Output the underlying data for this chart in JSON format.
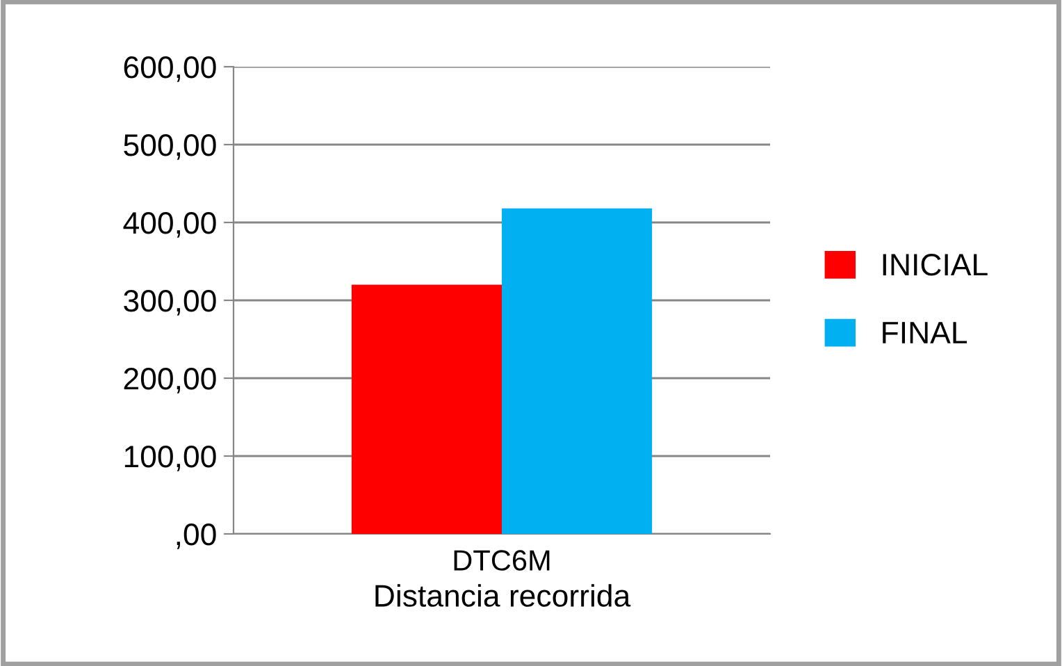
{
  "chart_data": {
    "type": "bar",
    "categories": [
      "DTC6M"
    ],
    "xlabel": "Distancia recorrida",
    "series": [
      {
        "name": "INICIAL",
        "color": "#ff0000",
        "values": [
          320
        ]
      },
      {
        "name": "FINAL",
        "color": "#00b0f0",
        "values": [
          418
        ]
      }
    ],
    "ylim": [
      0,
      600
    ],
    "yticks": [
      {
        "value": 0,
        "label": ",00"
      },
      {
        "value": 100,
        "label": "100,00"
      },
      {
        "value": 200,
        "label": "200,00"
      },
      {
        "value": 300,
        "label": "300,00"
      },
      {
        "value": 400,
        "label": "400,00"
      },
      {
        "value": 500,
        "label": "500,00"
      },
      {
        "value": 600,
        "label": "600,00"
      }
    ],
    "grid": "y",
    "legend": "right"
  }
}
